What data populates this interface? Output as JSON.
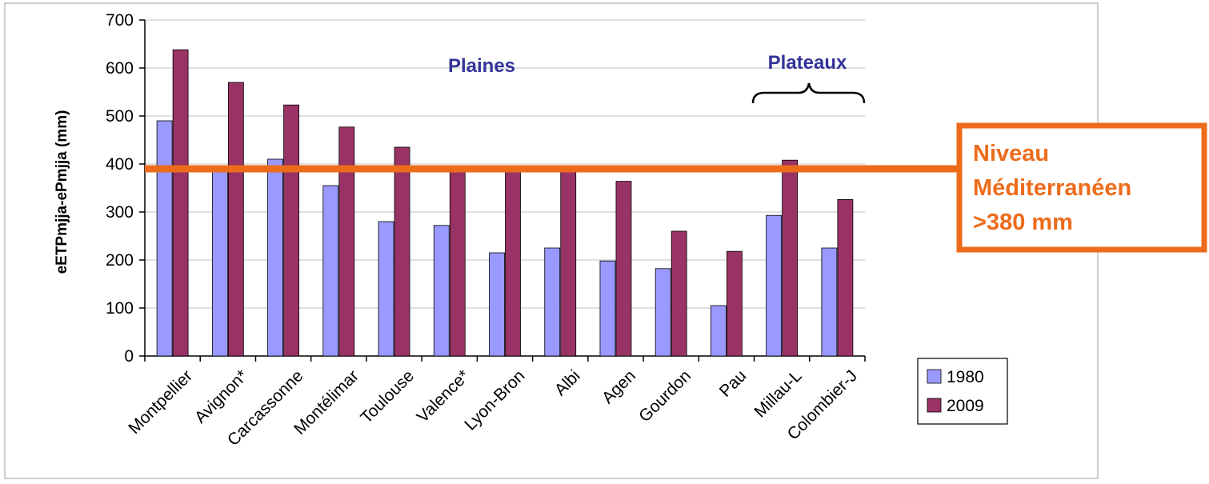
{
  "chart_data": {
    "type": "bar",
    "ylabel": "eETPmjja-ePmjja (mm)",
    "ylim": [
      0,
      700
    ],
    "yticks": [
      0,
      100,
      200,
      300,
      400,
      500,
      600,
      700
    ],
    "grid": true,
    "legend_position": "bottom-right",
    "categories": [
      "Montpellier",
      "Avignon*",
      "Carcassonne",
      "Montélimar",
      "Toulouse",
      "Valence*",
      "Lyon-Bron",
      "Albi",
      "Agen",
      "Gourdon",
      "Pau",
      "Millau-L",
      "Colombier-J"
    ],
    "series": [
      {
        "name": "1980",
        "color": "#9999ff",
        "values": [
          490,
          390,
          410,
          355,
          280,
          272,
          215,
          225,
          198,
          182,
          105,
          293,
          225
        ]
      },
      {
        "name": "2009",
        "color": "#993366",
        "values": [
          638,
          570,
          523,
          477,
          435,
          390,
          390,
          385,
          364,
          260,
          218,
          408,
          326
        ]
      }
    ],
    "group_labels": {
      "plaines": "Plaines",
      "plateaux": "Plateaux"
    },
    "reference_line": {
      "value": 390,
      "color": "#ed6c1b"
    },
    "annotation": {
      "lines": [
        "Niveau",
        "Méditerranéen",
        ">380 mm"
      ],
      "color": "#ed6c1b"
    }
  }
}
